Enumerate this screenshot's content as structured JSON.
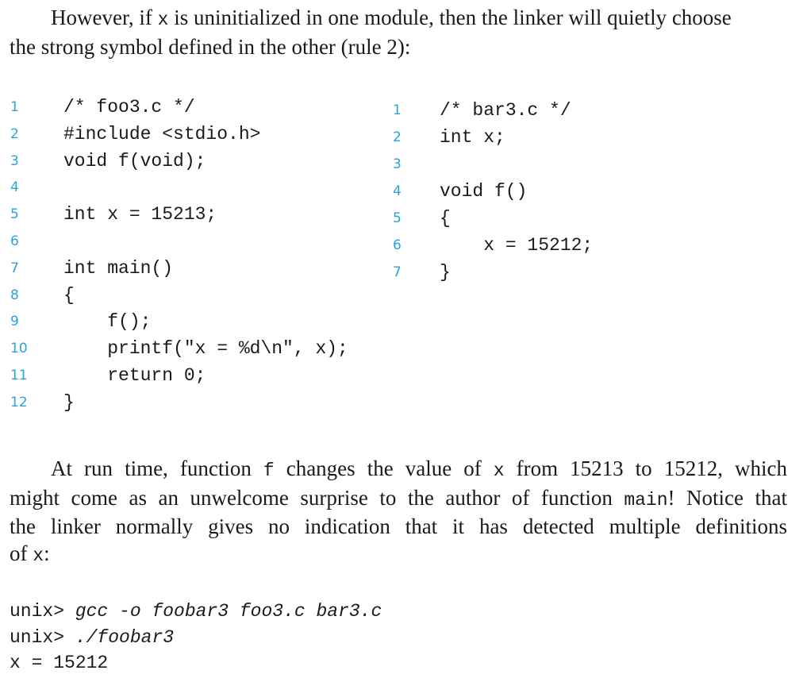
{
  "intro": {
    "line1_a": "However, if ",
    "line1_code": "x",
    "line1_b": " is uninitialized in one module, then the linker will quietly choose",
    "line2": "the strong symbol defined in the other (rule 2):"
  },
  "foo3": {
    "line_numbers": [
      "1",
      "2",
      "3",
      "4",
      "5",
      "6",
      "7",
      "8",
      "9",
      "10",
      "11",
      "12"
    ],
    "lines": [
      "/* foo3.c */",
      "#include <stdio.h>",
      "void f(void);",
      "",
      "int x = 15213;",
      "",
      "int main()",
      "{",
      "    f();",
      "    printf(\"x = %d\\n\", x);",
      "    return 0;",
      "}"
    ]
  },
  "bar3": {
    "line_numbers": [
      "1",
      "2",
      "3",
      "4",
      "5",
      "6",
      "7"
    ],
    "lines": [
      "/* bar3.c */",
      "int x;",
      "",
      "void f()",
      "{",
      "    x = 15212;",
      "}"
    ]
  },
  "outro": {
    "l1_a": "At run time, function ",
    "l1_code1": "f",
    "l1_b": " changes the value of ",
    "l1_code2": "x",
    "l1_c": " from 15213 to 15212, which",
    "l2_a": "might come as an unwelcome surprise to the author of function ",
    "l2_code": "main",
    "l2_b": "! Notice that",
    "l3": "the linker normally gives no indication that it has detected multiple definitions",
    "l4_a": "of ",
    "l4_code": "x",
    "l4_b": ":"
  },
  "terminal": {
    "prompt": "unix> ",
    "cmd1": "gcc -o foobar3 foo3.c bar3.c",
    "cmd2": "./foobar3",
    "output": "x = 15212"
  }
}
